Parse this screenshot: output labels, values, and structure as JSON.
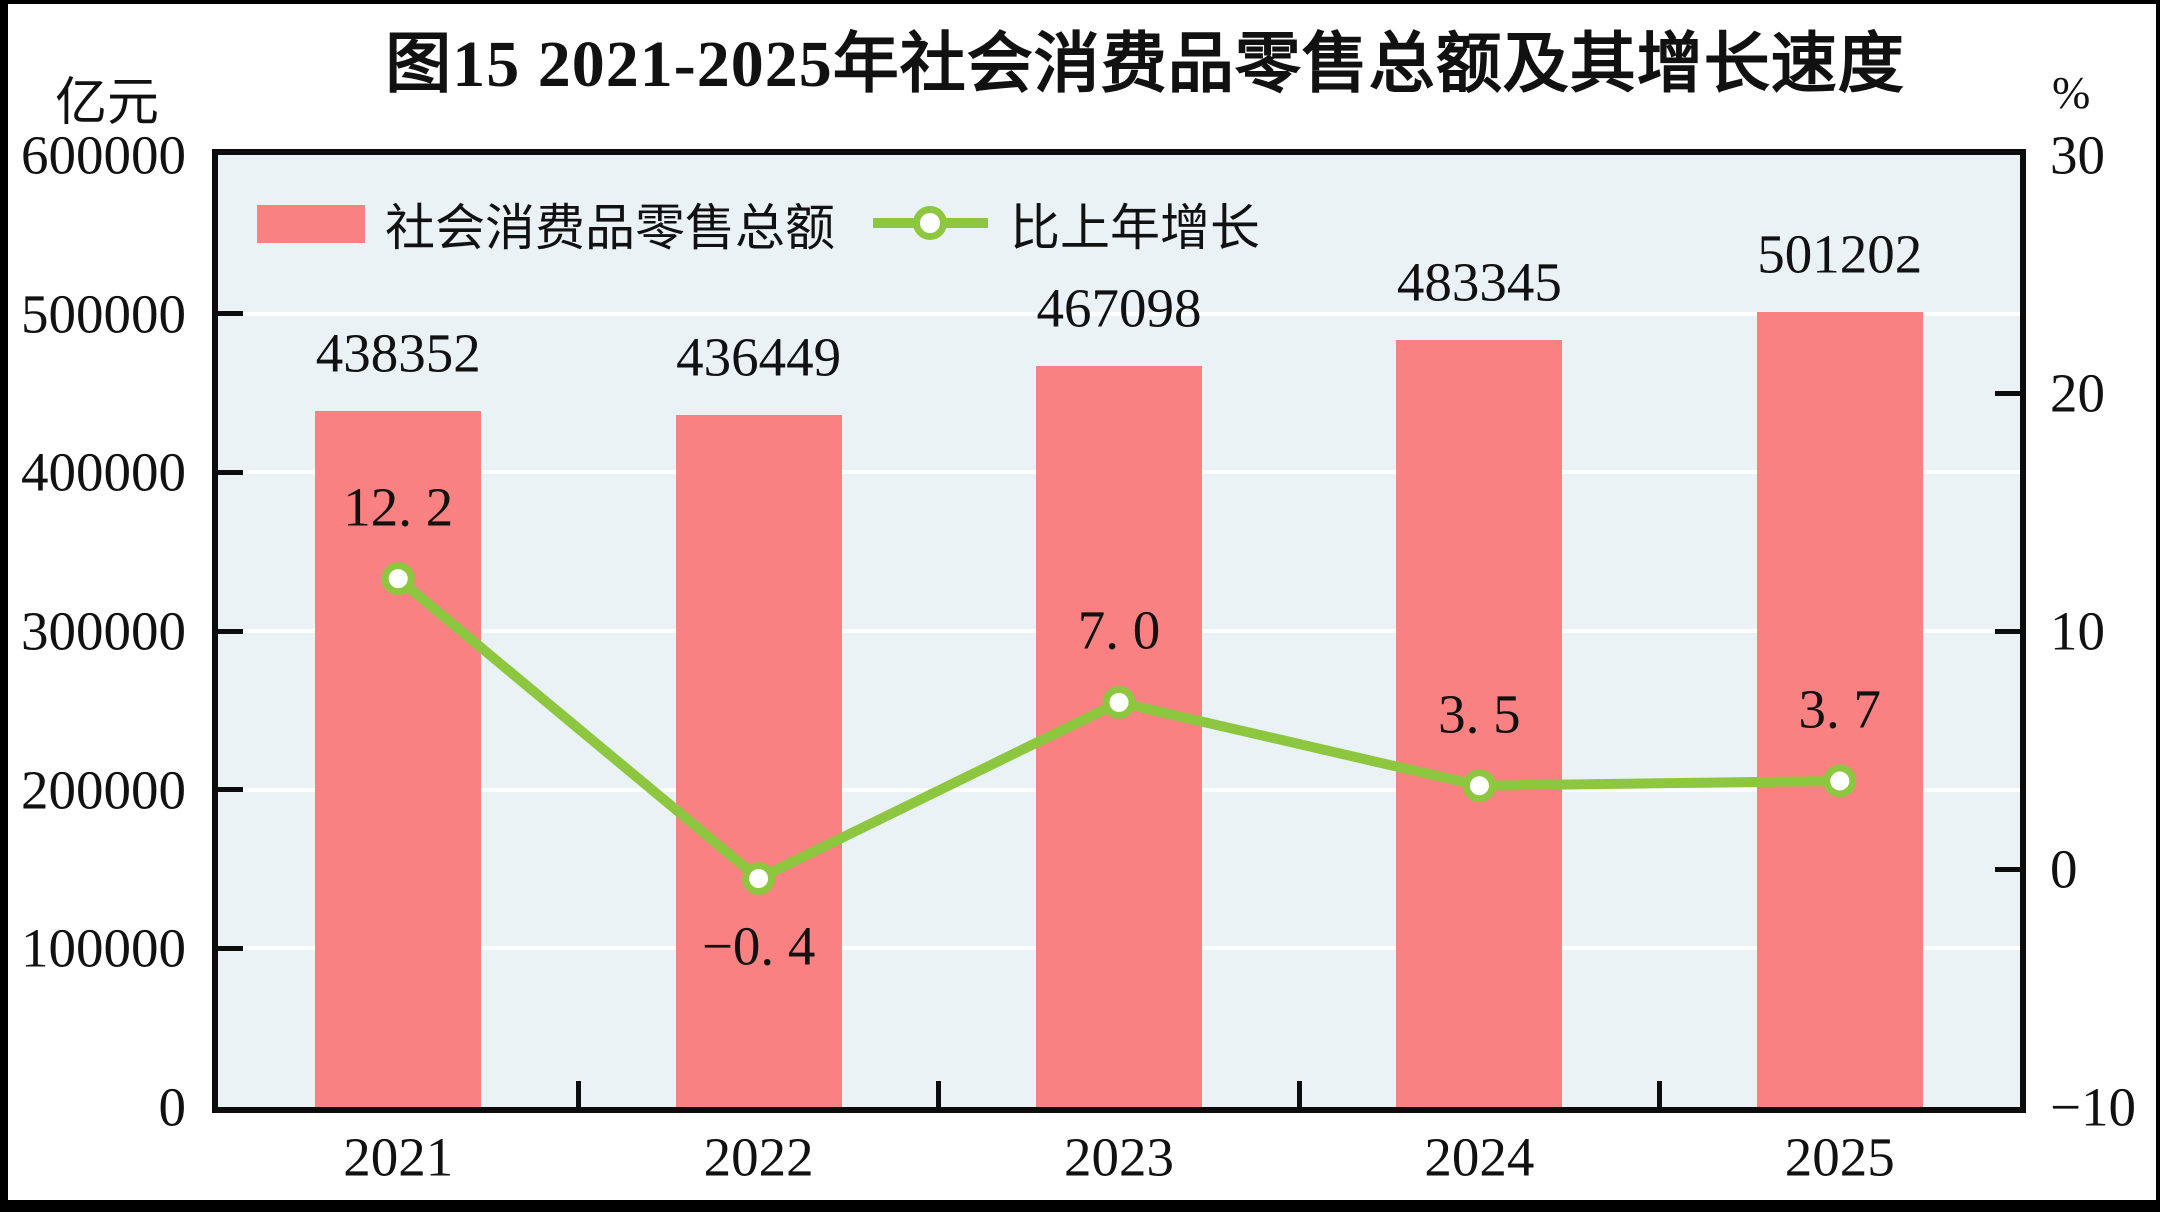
{
  "title": "图15  2021-2025年社会消费品零售总额及其增长速度",
  "left_axis": {
    "unit": "亿元",
    "tick_labels": [
      "600000",
      "500000",
      "400000",
      "300000",
      "200000",
      "100000",
      "0"
    ],
    "tick_values": [
      600000,
      500000,
      400000,
      300000,
      200000,
      100000,
      0
    ]
  },
  "right_axis": {
    "unit": "%",
    "tick_labels": [
      "30",
      "20",
      "10",
      "0",
      "−10"
    ],
    "tick_values": [
      30,
      20,
      10,
      0,
      -10
    ]
  },
  "legend": {
    "bar_label": "社会消费品零售总额",
    "line_label": "比上年增长"
  },
  "categories": [
    "2021",
    "2022",
    "2023",
    "2024",
    "2025"
  ],
  "bar_value_labels": [
    "438352",
    "436449",
    "467098",
    "483345",
    "501202"
  ],
  "line_value_labels": [
    "12. 2",
    "−0. 4",
    "7. 0",
    "3. 5",
    "3. 7"
  ],
  "colors": {
    "bar": "#F98181",
    "line": "#8DC73F",
    "marker_fill": "#FFFFFF",
    "plot_background": "#EAF2F6",
    "gridline": "#FFFFFF",
    "frame": "#0C0C0C",
    "text": "#111111",
    "page_background": "#FFFFFF"
  },
  "chart_data": {
    "type": "bar",
    "subtype": "bar+line dual axis",
    "title": "图15  2021-2025年社会消费品零售总额及其增长速度",
    "categories": [
      "2021",
      "2022",
      "2023",
      "2024",
      "2025"
    ],
    "series": [
      {
        "name": "社会消费品零售总额",
        "type": "bar",
        "axis": "left",
        "unit": "亿元",
        "values": [
          438352,
          436449,
          467098,
          483345,
          501202
        ]
      },
      {
        "name": "比上年增长",
        "type": "line",
        "axis": "right",
        "unit": "%",
        "values": [
          12.2,
          -0.4,
          7.0,
          3.5,
          3.7
        ]
      }
    ],
    "left_axis": {
      "label": "亿元",
      "min": 0,
      "max": 600000,
      "tick_interval": 100000
    },
    "right_axis": {
      "label": "%",
      "min": -10,
      "max": 30,
      "tick_interval": 10
    },
    "grid": "horizontal white gridlines every 100000",
    "legend_position": "top-left inside plot"
  }
}
